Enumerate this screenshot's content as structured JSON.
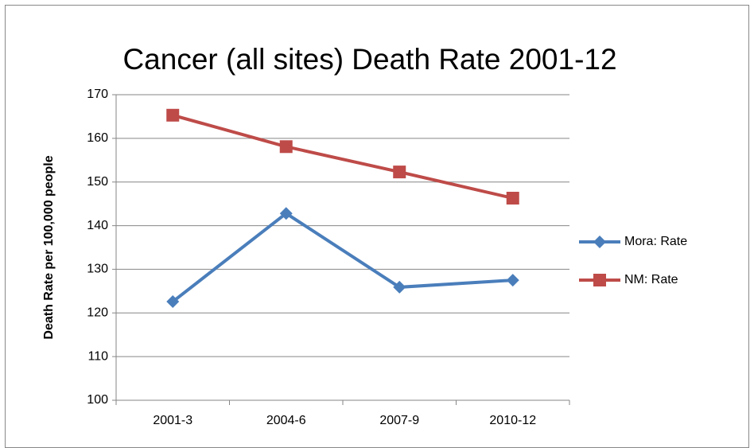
{
  "chart_data": {
    "type": "line",
    "title": "Cancer (all sites) Death Rate 2001-12",
    "y_label": "Death Rate per 100,000 people",
    "categories": [
      "2001-3",
      "2004-6",
      "2007-9",
      "2010-12"
    ],
    "series": [
      {
        "name": "Mora: Rate",
        "color": "#4a7ebb",
        "marker": "diamond",
        "values": [
          122.6,
          142.8,
          125.9,
          127.5
        ]
      },
      {
        "name": "NM: Rate",
        "color": "#be4b48",
        "marker": "square",
        "values": [
          165.3,
          158.1,
          152.3,
          146.3
        ]
      }
    ],
    "ylim": [
      100,
      170
    ],
    "yticks": [
      100,
      110,
      120,
      130,
      140,
      150,
      160,
      170
    ],
    "grid": true,
    "legend": "right"
  }
}
